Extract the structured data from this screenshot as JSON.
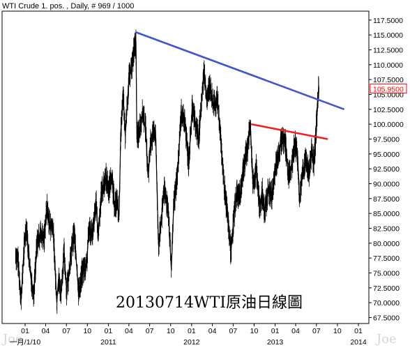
{
  "header": {
    "title": "WTI Crude 1. pos. , Daily, # 969 / 1000"
  },
  "annotation": "20130714WTI原油日線圖",
  "watermarks": [
    "Joe",
    "Joe"
  ],
  "colors": {
    "price": "#000000",
    "resistance_line": "#4455cc",
    "support_line": "#ee2222",
    "last_price_box": "#ff0000",
    "frame": "#000000"
  },
  "chart_data": {
    "type": "line",
    "title": "",
    "xlabel": "",
    "ylabel": "",
    "ylim": [
      66.5,
      119.0
    ],
    "grid": false,
    "y_ticks": [
      "117.5000",
      "115.0000",
      "112.5000",
      "110.0000",
      "107.5000",
      "105.0000",
      "102.5000",
      "100.0000",
      "97.5000",
      "95.0000",
      "92.5000",
      "90.0000",
      "87.5000",
      "85.0000",
      "82.5000",
      "80.0000",
      "77.5000",
      "75.0000",
      "72.5000",
      "70.0000",
      "67.5000"
    ],
    "last_price_label": "105.9500",
    "x_tick_labels": [
      {
        "label": "01",
        "date": "2010-01-01"
      },
      {
        "label": "04",
        "date": "2010-04-01"
      },
      {
        "label": "07",
        "date": "2010-07-01"
      },
      {
        "label": "10",
        "date": "2010-10-01"
      },
      {
        "label": "01",
        "date": "2011-01-01"
      },
      {
        "label": "04",
        "date": "2011-04-01"
      },
      {
        "label": "07",
        "date": "2011-07-01"
      },
      {
        "label": "10",
        "date": "2011-10-01"
      },
      {
        "label": "01",
        "date": "2012-01-01"
      },
      {
        "label": "04",
        "date": "2012-04-01"
      },
      {
        "label": "07",
        "date": "2012-07-01"
      },
      {
        "label": "10",
        "date": "2012-10-01"
      },
      {
        "label": "01",
        "date": "2013-01-01"
      },
      {
        "label": "04",
        "date": "2013-04-01"
      },
      {
        "label": "07",
        "date": "2013-07-01"
      },
      {
        "label": "10",
        "date": "2013-10-01"
      },
      {
        "label": "01",
        "date": "2014-01-01"
      }
    ],
    "x_year_labels": [
      {
        "label": "一月/1/10",
        "date": "2010-01-01"
      },
      {
        "label": "2011",
        "date": "2011-01-01"
      },
      {
        "label": "2012",
        "date": "2012-01-01"
      },
      {
        "label": "2013",
        "date": "2013-01-01"
      },
      {
        "label": "2014",
        "date": "2014-01-01"
      }
    ],
    "series": [
      {
        "values": [
          [
            "2009-11-20",
            78.0
          ],
          [
            "2009-12-01",
            77.0
          ],
          [
            "2009-12-15",
            70.5
          ],
          [
            "2009-12-28",
            79.5
          ],
          [
            "2010-01-06",
            83.0
          ],
          [
            "2010-01-25",
            74.5
          ],
          [
            "2010-02-08",
            71.5
          ],
          [
            "2010-02-22",
            80.0
          ],
          [
            "2010-03-10",
            81.5
          ],
          [
            "2010-03-25",
            80.5
          ],
          [
            "2010-04-06",
            86.0
          ],
          [
            "2010-04-20",
            83.0
          ],
          [
            "2010-05-04",
            82.5
          ],
          [
            "2010-05-20",
            70.0
          ],
          [
            "2010-05-27",
            74.0
          ],
          [
            "2010-06-08",
            71.5
          ],
          [
            "2010-06-21",
            78.5
          ],
          [
            "2010-07-02",
            72.0
          ],
          [
            "2010-07-20",
            77.5
          ],
          [
            "2010-08-04",
            82.0
          ],
          [
            "2010-08-24",
            71.5
          ],
          [
            "2010-09-08",
            75.0
          ],
          [
            "2010-09-28",
            76.5
          ],
          [
            "2010-10-08",
            82.5
          ],
          [
            "2010-10-25",
            81.5
          ],
          [
            "2010-11-08",
            87.0
          ],
          [
            "2010-11-17",
            81.0
          ],
          [
            "2010-12-01",
            88.5
          ],
          [
            "2010-12-22",
            91.0
          ],
          [
            "2011-01-04",
            89.0
          ],
          [
            "2011-01-14",
            91.5
          ],
          [
            "2011-01-28",
            86.5
          ],
          [
            "2011-02-08",
            87.0
          ],
          [
            "2011-02-17",
            84.5
          ],
          [
            "2011-02-24",
            98.0
          ],
          [
            "2011-03-07",
            105.0
          ],
          [
            "2011-03-16",
            98.0
          ],
          [
            "2011-04-01",
            107.5
          ],
          [
            "2011-04-11",
            109.0
          ],
          [
            "2011-04-22",
            112.0
          ],
          [
            "2011-05-02",
            114.0
          ],
          [
            "2011-05-06",
            97.5
          ],
          [
            "2011-05-16",
            99.0
          ],
          [
            "2011-06-01",
            102.0
          ],
          [
            "2011-06-14",
            99.0
          ],
          [
            "2011-06-24",
            91.0
          ],
          [
            "2011-07-05",
            97.0
          ],
          [
            "2011-07-27",
            99.0
          ],
          [
            "2011-08-05",
            85.0
          ],
          [
            "2011-08-09",
            79.5
          ],
          [
            "2011-08-22",
            84.0
          ],
          [
            "2011-09-01",
            89.0
          ],
          [
            "2011-09-20",
            86.0
          ],
          [
            "2011-10-04",
            75.5
          ],
          [
            "2011-10-14",
            86.0
          ],
          [
            "2011-11-01",
            92.0
          ],
          [
            "2011-11-16",
            102.0
          ],
          [
            "2011-12-01",
            100.5
          ],
          [
            "2011-12-19",
            93.5
          ],
          [
            "2012-01-04",
            103.0
          ],
          [
            "2012-01-16",
            100.5
          ],
          [
            "2012-02-01",
            97.5
          ],
          [
            "2012-02-24",
            109.0
          ],
          [
            "2012-03-06",
            104.5
          ],
          [
            "2012-03-22",
            106.5
          ],
          [
            "2012-04-05",
            103.0
          ],
          [
            "2012-04-24",
            104.0
          ],
          [
            "2012-05-07",
            97.5
          ],
          [
            "2012-05-23",
            89.5
          ],
          [
            "2012-06-08",
            84.0
          ],
          [
            "2012-06-21",
            78.5
          ],
          [
            "2012-07-02",
            83.5
          ],
          [
            "2012-07-16",
            88.5
          ],
          [
            "2012-07-31",
            88.0
          ],
          [
            "2012-08-14",
            92.5
          ],
          [
            "2012-09-04",
            96.5
          ],
          [
            "2012-09-14",
            100.0
          ],
          [
            "2012-09-26",
            90.0
          ],
          [
            "2012-10-10",
            92.5
          ],
          [
            "2012-10-25",
            86.0
          ],
          [
            "2012-11-06",
            88.5
          ],
          [
            "2012-11-15",
            85.0
          ],
          [
            "2012-12-03",
            89.0
          ],
          [
            "2012-12-18",
            88.0
          ],
          [
            "2013-01-02",
            92.5
          ],
          [
            "2013-01-17",
            95.5
          ],
          [
            "2013-01-30",
            97.5
          ],
          [
            "2013-02-14",
            97.0
          ],
          [
            "2013-02-28",
            91.5
          ],
          [
            "2013-03-14",
            92.5
          ],
          [
            "2013-03-28",
            97.0
          ],
          [
            "2013-04-10",
            94.5
          ],
          [
            "2013-04-18",
            87.0
          ],
          [
            "2013-05-01",
            91.5
          ],
          [
            "2013-05-15",
            94.0
          ],
          [
            "2013-05-30",
            92.0
          ],
          [
            "2013-06-10",
            95.5
          ],
          [
            "2013-06-20",
            93.5
          ],
          [
            "2013-06-27",
            97.0
          ],
          [
            "2013-07-03",
            101.5
          ],
          [
            "2013-07-11",
            106.5
          ],
          [
            "2013-07-12",
            105.95
          ]
        ]
      }
    ],
    "trendlines": [
      {
        "from": [
          "2011-04-29",
          115.5
        ],
        "to": [
          "2013-10-31",
          102.5
        ],
        "color_key": "resistance_line"
      },
      {
        "from": [
          "2012-09-18",
          100.0
        ],
        "to": [
          "2013-08-20",
          97.5
        ],
        "color_key": "support_line"
      }
    ]
  }
}
